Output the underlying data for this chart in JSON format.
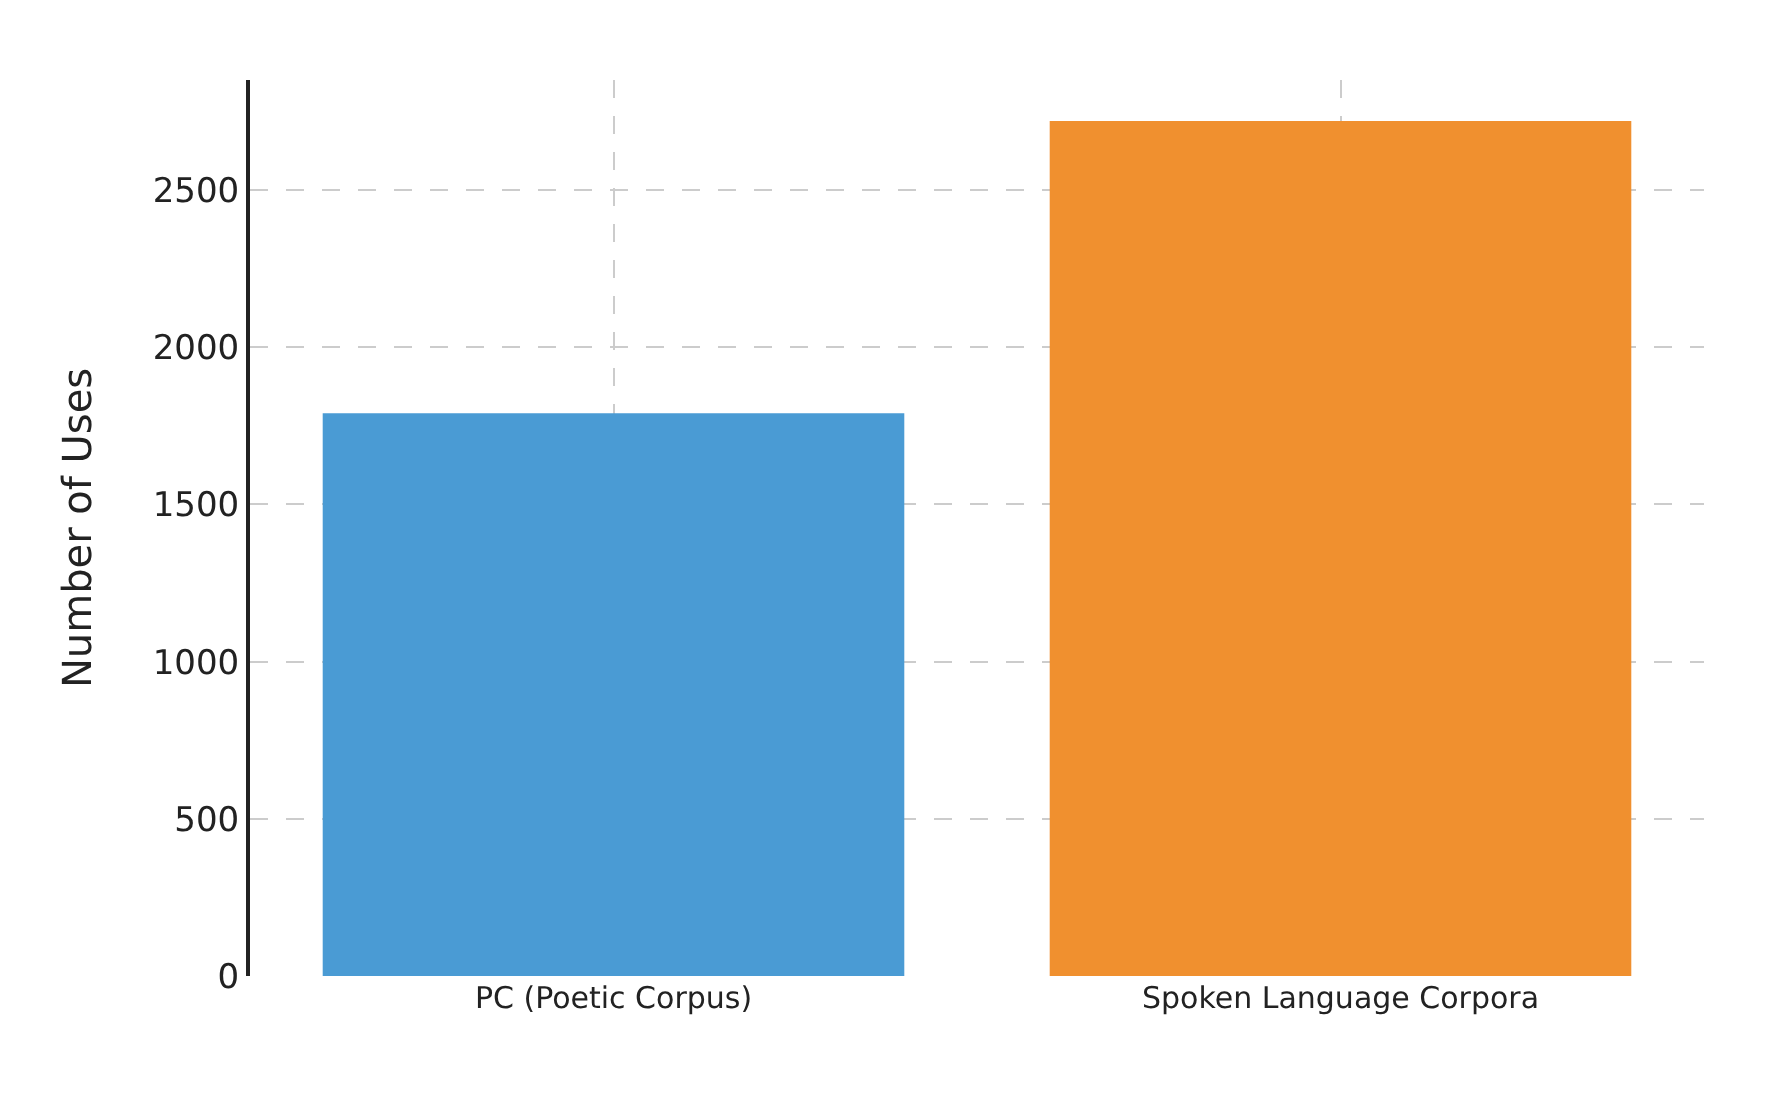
{
  "chart_data": {
    "type": "bar",
    "ylabel": "Number of Uses",
    "categories": [
      "PC (Poetic Corpus)",
      "Spoken Language Corpora"
    ],
    "values": [
      1790,
      2720
    ],
    "colors": [
      "#4a9bd4",
      "#f0902f"
    ],
    "ylim": [
      0,
      2850
    ],
    "yticks": [
      0,
      500,
      1000,
      1500,
      2000,
      2500
    ],
    "grid": true
  }
}
